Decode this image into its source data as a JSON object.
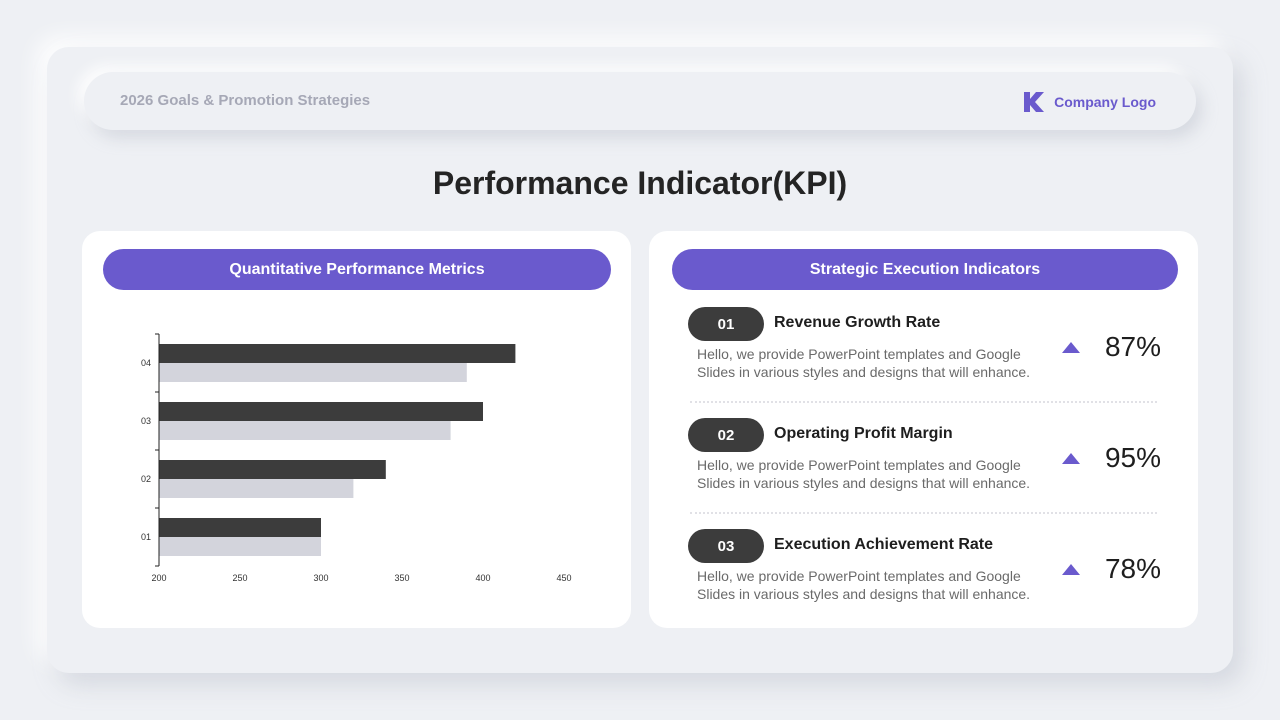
{
  "header": {
    "title": "2026 Goals & Promotion Strategies",
    "logo_text": "Company Logo",
    "logo_icon": "k-logo-icon"
  },
  "page_title": "Performance Indicator(KPI)",
  "left_panel": {
    "title": "Quantitative Performance Metrics"
  },
  "right_panel": {
    "title": "Strategic Execution Indicators",
    "items": [
      {
        "number": "01",
        "name": "Revenue Growth Rate",
        "description": "Hello, we provide PowerPoint templates and Google Slides in various styles and designs that will enhance.",
        "value": "87%",
        "trend_icon": "arrow-up-icon"
      },
      {
        "number": "02",
        "name": "Operating Profit Margin",
        "description": "Hello, we provide PowerPoint templates and Google Slides in various styles and designs that will enhance.",
        "value": "95%",
        "trend_icon": "arrow-up-icon"
      },
      {
        "number": "03",
        "name": "Execution Achievement Rate",
        "description": "Hello, we provide PowerPoint templates and Google Slides in various styles and designs that will enhance.",
        "value": "78%",
        "trend_icon": "arrow-up-icon"
      }
    ]
  },
  "colors": {
    "accent": "#6a5acd",
    "dark_series": "#3c3c3c",
    "light_series": "#d3d4dc",
    "background": "#eef0f4"
  },
  "chart_data": {
    "type": "bar",
    "orientation": "horizontal",
    "categories": [
      "01",
      "02",
      "03",
      "04"
    ],
    "series": [
      {
        "values": [
          300,
          340,
          400,
          420
        ]
      },
      {
        "values": [
          300,
          320,
          380,
          390
        ]
      }
    ],
    "xlim": [
      200,
      450
    ],
    "xticks": [
      "200",
      "250",
      "300",
      "350",
      "400",
      "450"
    ],
    "grid": false,
    "legend": "none",
    "title": "",
    "xlabel": "",
    "ylabel": ""
  }
}
